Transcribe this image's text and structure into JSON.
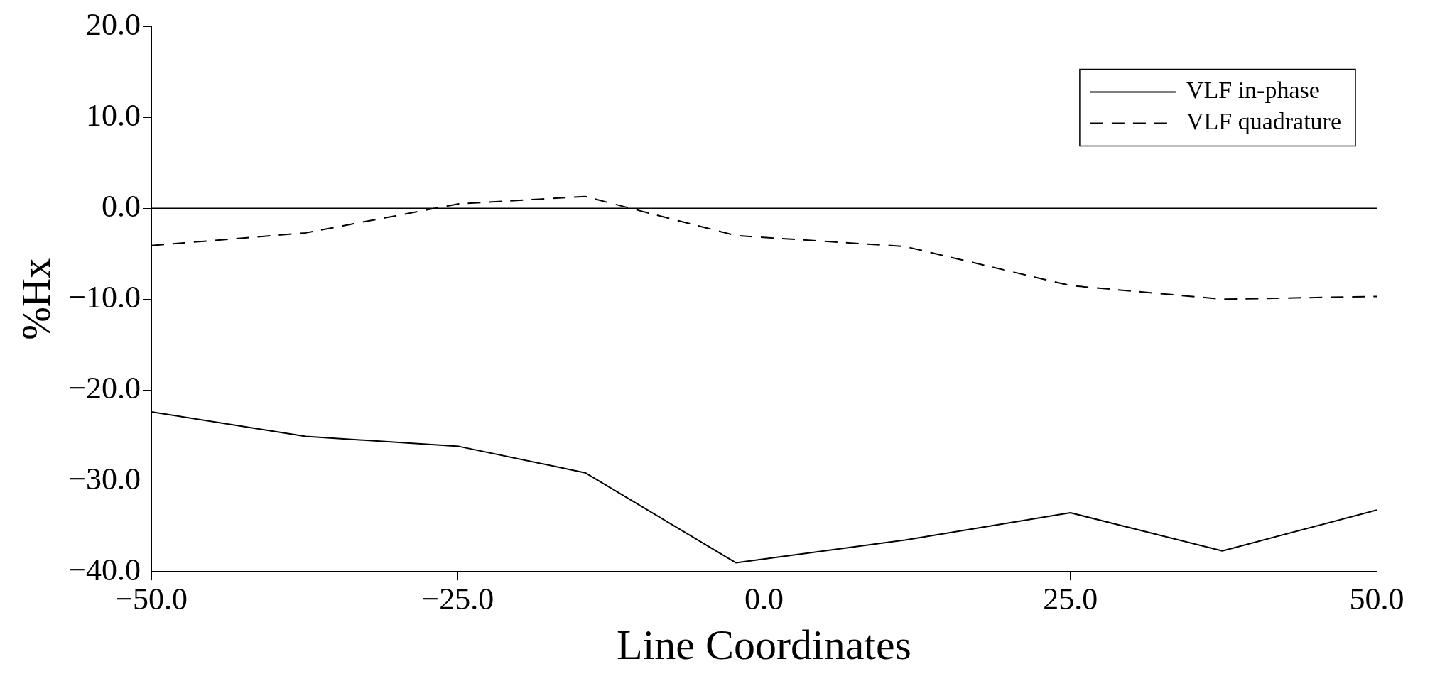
{
  "chart_data": {
    "type": "line",
    "xlabel": "Line Coordinates",
    "ylabel": "%Hx",
    "x": [
      -50,
      -37.4,
      -24.9,
      -14.6,
      -2.3,
      11.5,
      25,
      37.4,
      50
    ],
    "series": [
      {
        "name": "VLF in-phase",
        "color": "#000000",
        "line_style": "solid",
        "values": [
          -22.4,
          -25.1,
          -26.2,
          -29.1,
          -39.0,
          -36.5,
          -33.5,
          -37.7,
          -33.2
        ]
      },
      {
        "name": "VLF quadrature",
        "color": "#000000",
        "line_style": "dashed",
        "values": [
          -4.1,
          -2.7,
          0.5,
          1.3,
          -3.0,
          -4.2,
          -8.5,
          -10.0,
          -9.7
        ]
      }
    ],
    "xlim": [
      -50,
      50
    ],
    "xticks": [
      {
        "value": -50,
        "label": "−50.0"
      },
      {
        "value": -25,
        "label": "−25.0"
      },
      {
        "value": 0,
        "label": "0.0"
      },
      {
        "value": 25,
        "label": "25.0"
      },
      {
        "value": 50,
        "label": "50.0"
      }
    ],
    "ylim": [
      -40,
      20
    ],
    "yticks": [
      {
        "value": -40,
        "label": "−40.0"
      },
      {
        "value": -30,
        "label": "−30.0"
      },
      {
        "value": -20,
        "label": "−20.0"
      },
      {
        "value": -10,
        "label": "−10.0"
      },
      {
        "value": 0,
        "label": "0.0"
      },
      {
        "value": 10,
        "label": "10.0"
      },
      {
        "value": 20,
        "label": "20.0"
      }
    ],
    "ref_lines": [
      {
        "axis": "y",
        "value": 0,
        "color": "#000000"
      }
    ],
    "grid": false,
    "legend": "top right",
    "marker": "none"
  }
}
